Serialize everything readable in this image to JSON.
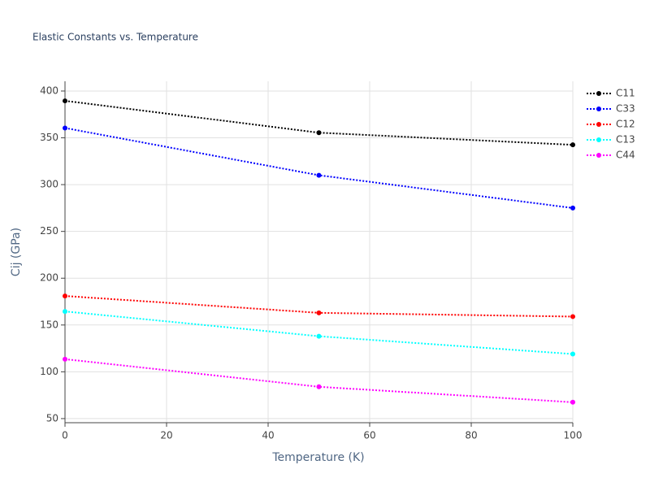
{
  "chart_data": {
    "type": "line",
    "title": "Elastic Constants vs. Temperature",
    "x_label": "Temperature (K)",
    "y_label": "Cij (GPa)",
    "x": [
      0,
      50,
      100
    ],
    "series": [
      {
        "name": "C11",
        "color": "#000000",
        "values": [
          389.5,
          355.5,
          342.5
        ]
      },
      {
        "name": "C33",
        "color": "#0000ff",
        "values": [
          360.5,
          310,
          275
        ]
      },
      {
        "name": "C12",
        "color": "#ff0000",
        "values": [
          181,
          163,
          159
        ]
      },
      {
        "name": "C13",
        "color": "#00ffff",
        "values": [
          164.5,
          138,
          119
        ]
      },
      {
        "name": "C44",
        "color": "#ff00ff",
        "values": [
          113.5,
          84,
          67.5
        ]
      }
    ],
    "xlim": [
      0,
      100
    ],
    "xticks": [
      0,
      20,
      40,
      60,
      80,
      100
    ],
    "ylim": [
      45.6,
      410.4
    ],
    "yticks": [
      50,
      100,
      150,
      200,
      250,
      300,
      350,
      400
    ],
    "grid": true,
    "legend": "top-right",
    "line_style": "dotted"
  }
}
